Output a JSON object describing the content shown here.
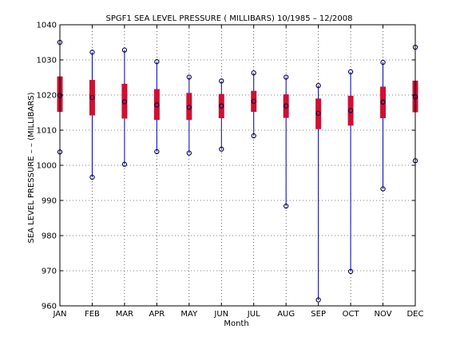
{
  "chart_data": {
    "type": "box",
    "title": "SPGF1  SEA LEVEL PRESSURE ( MILLIBARS) 10/1985 – 12/2008",
    "xlabel": "Month",
    "ylabel": "SEA LEVEL PRESSURE – – (MILLIBARS)",
    "ylim": [
      960,
      1040
    ],
    "yticks": [
      960,
      970,
      980,
      990,
      1000,
      1010,
      1020,
      1030,
      1040
    ],
    "grid": true,
    "categories": [
      "JAN",
      "FEB",
      "MAR",
      "APR",
      "MAY",
      "JUN",
      "JUL",
      "AUG",
      "SEP",
      "OCT",
      "NOV",
      "DEC"
    ],
    "series": [
      {
        "max": [
          1035.0,
          1032.2,
          1032.8,
          1029.5,
          1025.1,
          1024.0,
          1026.3,
          1025.1,
          1022.7,
          1026.6,
          1029.3,
          1033.6
        ],
        "q3": [
          1025.3,
          1024.3,
          1023.2,
          1021.7,
          1020.6,
          1020.3,
          1021.2,
          1020.2,
          1019.0,
          1019.8,
          1022.4,
          1024.1
        ],
        "mean": [
          1019.9,
          1019.3,
          1018.1,
          1017.2,
          1016.5,
          1016.9,
          1018.2,
          1016.9,
          1014.8,
          1015.6,
          1018.0,
          1019.5
        ],
        "q1": [
          1015.2,
          1014.2,
          1013.3,
          1012.9,
          1012.9,
          1013.4,
          1015.2,
          1013.5,
          1010.3,
          1011.3,
          1013.4,
          1015.1
        ],
        "min": [
          1003.8,
          996.6,
          1000.3,
          1003.9,
          1003.5,
          1004.6,
          1008.4,
          988.4,
          961.7,
          969.8,
          993.3,
          1001.3
        ]
      }
    ],
    "colors": {
      "whisker": "#0000aa",
      "box": "#cc1133",
      "marker": "#000044",
      "grid": "#000000",
      "axis": "#000000"
    }
  }
}
